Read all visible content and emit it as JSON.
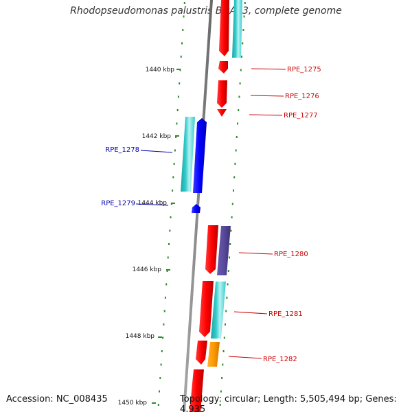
{
  "title": "Rhodopseudomonas palustris BisA53, complete genome",
  "footer": {
    "accession": "Accession: NC_008435",
    "topology": "Topology: circular; Length: 5,505,494 bp; Genes: 4,935"
  },
  "kbp_labels": [
    "1440 kbp",
    "1442 kbp",
    "1444 kbp",
    "1446 kbp",
    "1448 kbp",
    "1450 kbp"
  ],
  "gene_labels": [
    "RPE_1275",
    "RPE_1276",
    "RPE_1277",
    "RPE_1278",
    "RPE_1279",
    "RPE_1280",
    "RPE_1281",
    "RPE_1282"
  ],
  "colors": {
    "backbone": "#888888",
    "tick": "#2e8b2e",
    "forward_cds": "#ff0000",
    "reverse_cds": "#0000ff",
    "cyan_feature": "#33cccc",
    "purple_feature": "#5a4a9a",
    "orange_feature": "#ff9900",
    "label_red": "#cc0000",
    "label_blue": "#0000aa"
  }
}
